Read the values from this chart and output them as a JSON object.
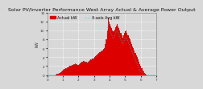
{
  "title": "Solar PV/Inverter Performance West Array Actual & Average Power Output",
  "title_fontsize": 4.5,
  "bg_color": "#d8d8d8",
  "plot_bg_color": "#d8d8d8",
  "bar_color": "#dd0000",
  "avg_line_color": "#00cccc",
  "grid_color": "#ffffff",
  "ylabel": "kW",
  "ylabel_fontsize": 3.5,
  "xlabel_fontsize": 3.0,
  "tick_fontsize": 3.0,
  "ylim": [
    0,
    14
  ],
  "yticks": [
    0,
    2,
    4,
    6,
    8,
    10,
    12,
    14
  ],
  "n_bars": 120,
  "bar_profile": [
    0,
    0,
    0,
    0,
    0,
    0,
    0,
    0,
    0,
    0,
    0.1,
    0.2,
    0.3,
    0.4,
    0.5,
    0.6,
    0.8,
    1.0,
    1.2,
    1.4,
    1.5,
    1.6,
    1.7,
    1.8,
    1.9,
    2.0,
    2.1,
    2.2,
    2.3,
    2.4,
    2.5,
    2.6,
    2.5,
    2.4,
    2.3,
    2.5,
    2.7,
    2.8,
    2.9,
    3.0,
    3.1,
    3.2,
    3.0,
    2.9,
    2.8,
    3.0,
    3.2,
    3.4,
    3.5,
    3.6,
    3.7,
    3.8,
    4.0,
    4.2,
    4.4,
    4.6,
    4.8,
    5.0,
    5.2,
    5.4,
    5.5,
    5.6,
    5.8,
    6.0,
    7.0,
    8.0,
    10.0,
    13.0,
    12.0,
    11.5,
    11.0,
    10.5,
    10.0,
    9.8,
    10.2,
    10.8,
    11.2,
    11.5,
    11.0,
    10.5,
    10.0,
    9.5,
    9.0,
    8.5,
    9.0,
    9.5,
    9.8,
    10.0,
    9.5,
    9.0,
    8.5,
    8.0,
    7.5,
    7.0,
    6.5,
    6.0,
    5.5,
    5.0,
    4.5,
    4.0,
    3.5,
    3.0,
    2.5,
    2.0,
    1.5,
    1.0,
    0.8,
    0.5,
    0.3,
    0.1,
    0,
    0,
    0,
    0,
    0,
    0,
    0,
    0,
    0,
    0
  ],
  "avg_profile": [
    0,
    0,
    0,
    0,
    0,
    0,
    0,
    0,
    0,
    0,
    0.05,
    0.15,
    0.25,
    0.35,
    0.45,
    0.55,
    0.7,
    0.9,
    1.1,
    1.3,
    1.4,
    1.5,
    1.6,
    1.7,
    1.8,
    1.9,
    2.0,
    2.1,
    2.2,
    2.3,
    2.4,
    2.5,
    2.4,
    2.3,
    2.2,
    2.4,
    2.6,
    2.7,
    2.8,
    2.9,
    3.0,
    3.1,
    2.9,
    2.8,
    2.7,
    2.9,
    3.1,
    3.3,
    3.4,
    3.5,
    3.6,
    3.7,
    3.9,
    4.1,
    4.3,
    4.5,
    4.7,
    4.9,
    5.1,
    5.3,
    5.4,
    5.5,
    5.7,
    5.9,
    6.8,
    7.8,
    9.5,
    11.5,
    10.5,
    10.0,
    9.5,
    9.0,
    8.5,
    8.3,
    8.7,
    9.3,
    9.7,
    10.0,
    9.5,
    9.0,
    8.5,
    8.0,
    7.5,
    7.0,
    7.5,
    8.0,
    8.3,
    8.5,
    8.0,
    7.5,
    7.0,
    6.5,
    6.0,
    5.5,
    5.0,
    4.5,
    4.0,
    3.5,
    3.0,
    2.5,
    2.0,
    1.5,
    1.0,
    0.8,
    0.5,
    0.3,
    0.2,
    0.15,
    0.1,
    0.05,
    0,
    0,
    0,
    0,
    0,
    0,
    0,
    0,
    0,
    0
  ],
  "legend_actual": "Actual kW",
  "legend_avg": "X-axis Avg kW",
  "legend_fontsize": 3.5
}
